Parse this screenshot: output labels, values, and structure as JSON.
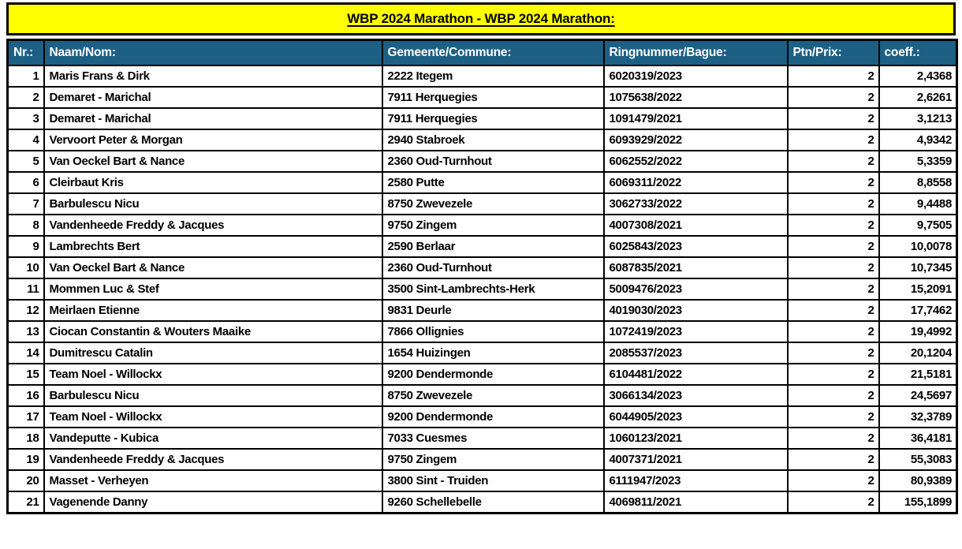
{
  "title": {
    "text": "WBP 2024 Marathon - WBP 2024 Marathon:"
  },
  "colors": {
    "title_background": "#ffff00",
    "header_background": "#1e6083",
    "header_text": "#ffffff",
    "border": "#000000",
    "body_text": "#000000"
  },
  "table": {
    "columns": [
      {
        "key": "nr",
        "label": "Nr.:",
        "align": "right"
      },
      {
        "key": "name",
        "label": "Naam/Nom:",
        "align": "left"
      },
      {
        "key": "commune",
        "label": "Gemeente/Commune:",
        "align": "left"
      },
      {
        "key": "ring",
        "label": "Ringnummer/Bague:",
        "align": "left"
      },
      {
        "key": "points",
        "label": "Ptn/Prix:",
        "align": "right"
      },
      {
        "key": "coeff",
        "label": "coeff.:",
        "align": "right"
      }
    ],
    "rows": [
      [
        "1",
        "Maris Frans & Dirk",
        "2222 Itegem",
        "6020319/2023",
        "2",
        "2,4368"
      ],
      [
        "2",
        "Demaret - Marichal",
        "7911 Herquegies",
        "1075638/2022",
        "2",
        "2,6261"
      ],
      [
        "3",
        "Demaret - Marichal",
        "7911 Herquegies",
        "1091479/2021",
        "2",
        "3,1213"
      ],
      [
        "4",
        "Vervoort Peter & Morgan",
        "2940 Stabroek",
        "6093929/2022",
        "2",
        "4,9342"
      ],
      [
        "5",
        "Van Oeckel Bart & Nance",
        "2360 Oud-Turnhout",
        "6062552/2022",
        "2",
        "5,3359"
      ],
      [
        "6",
        "Cleirbaut Kris",
        "2580 Putte",
        "6069311/2022",
        "2",
        "8,8558"
      ],
      [
        "7",
        "Barbulescu Nicu",
        "8750 Zwevezele",
        "3062733/2022",
        "2",
        "9,4488"
      ],
      [
        "8",
        "Vandenheede Freddy & Jacques",
        "9750 Zingem",
        "4007308/2021",
        "2",
        "9,7505"
      ],
      [
        "9",
        "Lambrechts Bert",
        "2590 Berlaar",
        "6025843/2023",
        "2",
        "10,0078"
      ],
      [
        "10",
        "Van Oeckel Bart & Nance",
        "2360 Oud-Turnhout",
        "6087835/2021",
        "2",
        "10,7345"
      ],
      [
        "11",
        "Mommen Luc & Stef",
        "3500 Sint-Lambrechts-Herk",
        "5009476/2023",
        "2",
        "15,2091"
      ],
      [
        "12",
        "Meirlaen Etienne",
        "9831 Deurle",
        "4019030/2023",
        "2",
        "17,7462"
      ],
      [
        "13",
        "Ciocan Constantin & Wouters Maaike",
        "7866 Ollignies",
        "1072419/2023",
        "2",
        "19,4992"
      ],
      [
        "14",
        "Dumitrescu Catalin",
        "1654 Huizingen",
        "2085537/2023",
        "2",
        "20,1204"
      ],
      [
        "15",
        "Team Noel - Willockx",
        "9200 Dendermonde",
        "6104481/2022",
        "2",
        "21,5181"
      ],
      [
        "16",
        "Barbulescu Nicu",
        "8750 Zwevezele",
        "3066134/2023",
        "2",
        "24,5697"
      ],
      [
        "17",
        "Team Noel - Willockx",
        "9200 Dendermonde",
        "6044905/2023",
        "2",
        "32,3789"
      ],
      [
        "18",
        "Vandeputte - Kubica",
        "7033 Cuesmes",
        "1060123/2021",
        "2",
        "36,4181"
      ],
      [
        "19",
        "Vandenheede Freddy & Jacques",
        "9750 Zingem",
        "4007371/2021",
        "2",
        "55,3083"
      ],
      [
        "20",
        "Masset - Verheyen",
        "3800 Sint - Truiden",
        "6111947/2023",
        "2",
        "80,9389"
      ],
      [
        "21",
        "Vagenende Danny",
        "9260 Schellebelle",
        "4069811/2021",
        "2",
        "155,1899"
      ]
    ]
  }
}
